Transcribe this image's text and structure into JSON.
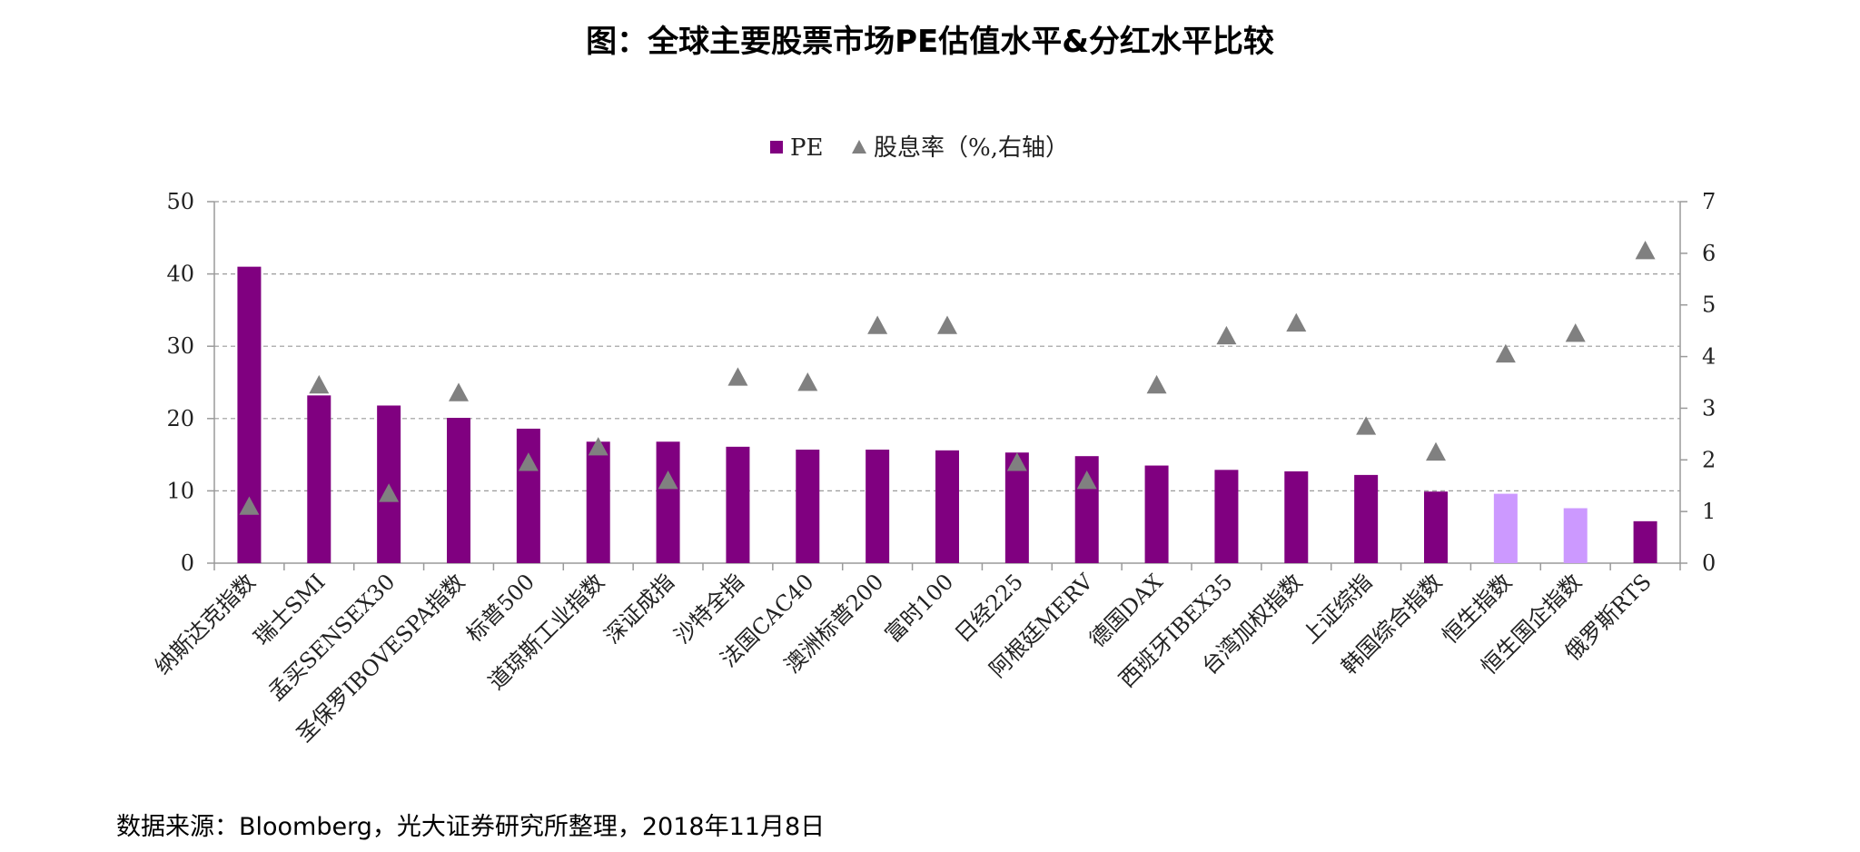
{
  "title": "图：全球主要股票市场PE估值水平&分红水平比较",
  "source": "数据来源：Bloomberg，光大证券研究所整理，2018年11月8日",
  "chart_data": {
    "type": "bar",
    "legend": [
      {
        "label": "PE",
        "marker": "square",
        "color": "#800080"
      },
      {
        "label": "股息率（%,右轴）",
        "marker": "triangle",
        "color": "#808080"
      }
    ],
    "legend_position": "top-center",
    "categories": [
      "纳斯达克指数",
      "瑞士SMI",
      "孟买SENSEX30",
      "圣保罗IBOVESPA指数",
      "标普500",
      "道琼斯工业指数",
      "深证成指",
      "沙特全指",
      "法国CAC40",
      "澳洲标普200",
      "富时100",
      "日经225",
      "阿根廷MERV",
      "德国DAX",
      "西班牙IBEX35",
      "台湾加权指数",
      "上证综指",
      "韩国综合指数",
      "恒生指数",
      "恒生国企指数",
      "俄罗斯RTS"
    ],
    "series": [
      {
        "name": "PE",
        "type": "bar",
        "axis": "left",
        "values": [
          41.0,
          23.2,
          21.8,
          20.1,
          18.6,
          16.8,
          16.8,
          16.1,
          15.7,
          15.7,
          15.6,
          15.3,
          14.8,
          13.5,
          12.9,
          12.7,
          12.2,
          9.9,
          9.6,
          7.6,
          5.8
        ],
        "colors": [
          "#800080",
          "#800080",
          "#800080",
          "#800080",
          "#800080",
          "#800080",
          "#800080",
          "#800080",
          "#800080",
          "#800080",
          "#800080",
          "#800080",
          "#800080",
          "#800080",
          "#800080",
          "#800080",
          "#800080",
          "#800080",
          "#CC99FF",
          "#CC99FF",
          "#800080"
        ]
      },
      {
        "name": "股息率（%,右轴）",
        "type": "scatter",
        "axis": "right",
        "marker_color": "#808080",
        "values": [
          1.1,
          3.45,
          1.35,
          3.3,
          1.95,
          2.25,
          1.6,
          3.6,
          3.5,
          4.6,
          4.6,
          1.95,
          1.6,
          3.45,
          4.4,
          4.65,
          2.65,
          2.15,
          4.05,
          4.45,
          6.05
        ]
      }
    ],
    "y_left": {
      "min": 0,
      "max": 50,
      "ticks": [
        0,
        10,
        20,
        30,
        40,
        50
      ]
    },
    "y_right": {
      "min": 0,
      "max": 7,
      "ticks": [
        0,
        1,
        2,
        3,
        4,
        5,
        6,
        7
      ]
    },
    "grid": "horizontal dashed"
  }
}
